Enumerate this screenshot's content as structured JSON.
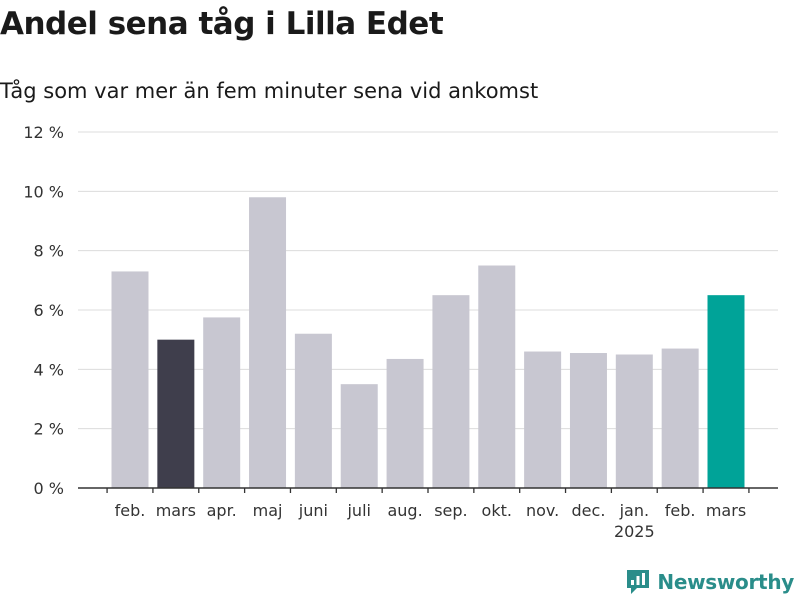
{
  "title": "Andel sena tåg i Lilla Edet",
  "subtitle": "Tåg som var mer än fem minuter sena vid ankomst",
  "brand": "Newsworthy",
  "colors": {
    "bar_default": "#c8c7d1",
    "bar_first_highlight": "#3f3e4c",
    "bar_last_highlight": "#00a398",
    "grid": "#dcdcdc",
    "axis": "#333333",
    "brand": "#2a8d8a"
  },
  "chart_data": {
    "type": "bar",
    "categories": [
      "feb.",
      "mars",
      "apr.",
      "maj",
      "juni",
      "juli",
      "aug.",
      "sep.",
      "okt.",
      "nov.",
      "dec.",
      "jan.",
      "feb.",
      "mars"
    ],
    "year_labels": [
      "",
      "",
      "",
      "",
      "",
      "",
      "",
      "",
      "",
      "",
      "",
      "2025",
      "",
      ""
    ],
    "values": [
      7.3,
      5.0,
      5.75,
      9.8,
      5.2,
      3.5,
      4.35,
      6.5,
      7.5,
      4.6,
      4.55,
      4.5,
      4.7,
      6.5
    ],
    "highlight": [
      null,
      "first",
      null,
      null,
      null,
      null,
      null,
      null,
      null,
      null,
      null,
      null,
      null,
      "last"
    ],
    "yticks": [
      0,
      2,
      4,
      6,
      8,
      10,
      12
    ],
    "ytick_labels": [
      "0 %",
      "2 %",
      "4 %",
      "6 %",
      "8 %",
      "10 %",
      "12 %"
    ],
    "ylim": [
      0,
      12
    ],
    "grid": true,
    "xlabel": "",
    "ylabel": ""
  }
}
